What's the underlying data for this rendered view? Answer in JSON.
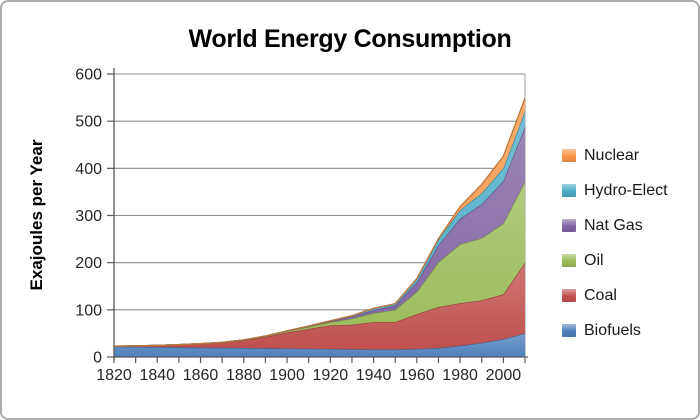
{
  "chart_data": {
    "type": "area",
    "stacked": true,
    "title": "World Energy Consumption",
    "ylabel": "Exajoules per Year",
    "xlabel": "",
    "ylim": [
      0,
      600
    ],
    "y_ticks": [
      0,
      100,
      200,
      300,
      400,
      500,
      600
    ],
    "grid": "horizontal",
    "legend_position": "right",
    "x": [
      1820,
      1830,
      1840,
      1850,
      1860,
      1870,
      1880,
      1890,
      1900,
      1910,
      1920,
      1930,
      1940,
      1950,
      1960,
      1970,
      1980,
      1990,
      2000,
      2010
    ],
    "x_labeled_ticks": [
      1820,
      1840,
      1860,
      1880,
      1900,
      1920,
      1940,
      1960,
      1980,
      2000
    ],
    "series": [
      {
        "name": "Biofuels",
        "color": "#4F81BD",
        "values": [
          22,
          21.5,
          21,
          20.5,
          20,
          19.5,
          19,
          18.5,
          18,
          17.5,
          17,
          16.5,
          16,
          16,
          17,
          19,
          24,
          30,
          38,
          50
        ]
      },
      {
        "name": "Coal",
        "color": "#C0504D",
        "values": [
          1,
          2,
          3.5,
          5.5,
          8,
          11,
          16,
          24,
          34,
          42,
          50,
          52,
          58,
          58,
          74,
          87,
          90,
          90,
          95,
          150
        ]
      },
      {
        "name": "Oil",
        "color": "#9BBB59",
        "values": [
          0,
          0,
          0,
          0,
          0.2,
          0.5,
          1,
          1.5,
          2.5,
          4.5,
          7,
          13,
          19,
          26,
          47,
          95,
          125,
          132,
          150,
          172
        ]
      },
      {
        "name": "Nat Gas",
        "color": "#8064A2",
        "values": [
          0,
          0,
          0,
          0,
          0,
          0,
          0.2,
          0.4,
          0.6,
          1.2,
          2,
          4,
          6.5,
          9,
          20,
          36,
          54,
          72,
          90,
          115
        ]
      },
      {
        "name": "Hydro-Elect",
        "color": "#4BACC6",
        "values": [
          0,
          0,
          0,
          0,
          0,
          0,
          0,
          0.1,
          0.3,
          0.6,
          1,
          2,
          3.5,
          4,
          8,
          13,
          18,
          23,
          27,
          34
        ]
      },
      {
        "name": "Nuclear",
        "color": "#F79646",
        "values": [
          0,
          0,
          0,
          0,
          0,
          0,
          0,
          0,
          0,
          0,
          0,
          0,
          0,
          0,
          0,
          1,
          8,
          19,
          26,
          28
        ]
      }
    ],
    "legend_order_top_to_bottom": [
      "Nuclear",
      "Hydro-Elect",
      "Nat Gas",
      "Oil",
      "Coal",
      "Biofuels"
    ]
  },
  "frame_border_color": "#ACACAC",
  "gridline_color": "#8C8C8C",
  "axis_color": "#595959"
}
